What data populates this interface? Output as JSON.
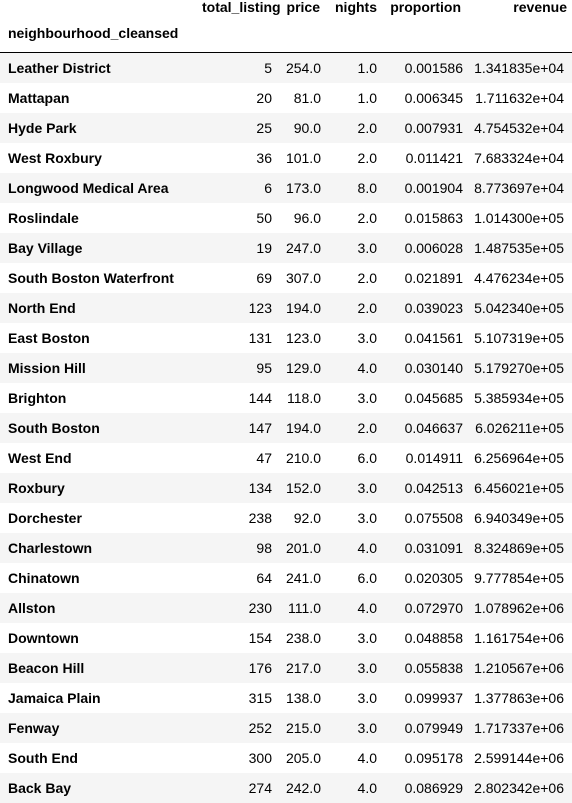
{
  "table": {
    "index_name": "neighbourhood_cleansed",
    "columns": [
      "total_listing",
      "price",
      "nights",
      "proportion",
      "revenue"
    ],
    "rows": [
      {
        "name": "Leather District",
        "total_listing": "5",
        "price": "254.0",
        "nights": "1.0",
        "proportion": "0.001586",
        "revenue": "1.341835e+04"
      },
      {
        "name": "Mattapan",
        "total_listing": "20",
        "price": "81.0",
        "nights": "1.0",
        "proportion": "0.006345",
        "revenue": "1.711632e+04"
      },
      {
        "name": "Hyde Park",
        "total_listing": "25",
        "price": "90.0",
        "nights": "2.0",
        "proportion": "0.007931",
        "revenue": "4.754532e+04"
      },
      {
        "name": "West Roxbury",
        "total_listing": "36",
        "price": "101.0",
        "nights": "2.0",
        "proportion": "0.011421",
        "revenue": "7.683324e+04"
      },
      {
        "name": "Longwood Medical Area",
        "total_listing": "6",
        "price": "173.0",
        "nights": "8.0",
        "proportion": "0.001904",
        "revenue": "8.773697e+04"
      },
      {
        "name": "Roslindale",
        "total_listing": "50",
        "price": "96.0",
        "nights": "2.0",
        "proportion": "0.015863",
        "revenue": "1.014300e+05"
      },
      {
        "name": "Bay Village",
        "total_listing": "19",
        "price": "247.0",
        "nights": "3.0",
        "proportion": "0.006028",
        "revenue": "1.487535e+05"
      },
      {
        "name": "South Boston Waterfront",
        "total_listing": "69",
        "price": "307.0",
        "nights": "2.0",
        "proportion": "0.021891",
        "revenue": "4.476234e+05"
      },
      {
        "name": "North End",
        "total_listing": "123",
        "price": "194.0",
        "nights": "2.0",
        "proportion": "0.039023",
        "revenue": "5.042340e+05"
      },
      {
        "name": "East Boston",
        "total_listing": "131",
        "price": "123.0",
        "nights": "3.0",
        "proportion": "0.041561",
        "revenue": "5.107319e+05"
      },
      {
        "name": "Mission Hill",
        "total_listing": "95",
        "price": "129.0",
        "nights": "4.0",
        "proportion": "0.030140",
        "revenue": "5.179270e+05"
      },
      {
        "name": "Brighton",
        "total_listing": "144",
        "price": "118.0",
        "nights": "3.0",
        "proportion": "0.045685",
        "revenue": "5.385934e+05"
      },
      {
        "name": "South Boston",
        "total_listing": "147",
        "price": "194.0",
        "nights": "2.0",
        "proportion": "0.046637",
        "revenue": "6.026211e+05"
      },
      {
        "name": "West End",
        "total_listing": "47",
        "price": "210.0",
        "nights": "6.0",
        "proportion": "0.014911",
        "revenue": "6.256964e+05"
      },
      {
        "name": "Roxbury",
        "total_listing": "134",
        "price": "152.0",
        "nights": "3.0",
        "proportion": "0.042513",
        "revenue": "6.456021e+05"
      },
      {
        "name": "Dorchester",
        "total_listing": "238",
        "price": "92.0",
        "nights": "3.0",
        "proportion": "0.075508",
        "revenue": "6.940349e+05"
      },
      {
        "name": "Charlestown",
        "total_listing": "98",
        "price": "201.0",
        "nights": "4.0",
        "proportion": "0.031091",
        "revenue": "8.324869e+05"
      },
      {
        "name": "Chinatown",
        "total_listing": "64",
        "price": "241.0",
        "nights": "6.0",
        "proportion": "0.020305",
        "revenue": "9.777854e+05"
      },
      {
        "name": "Allston",
        "total_listing": "230",
        "price": "111.0",
        "nights": "4.0",
        "proportion": "0.072970",
        "revenue": "1.078962e+06"
      },
      {
        "name": "Downtown",
        "total_listing": "154",
        "price": "238.0",
        "nights": "3.0",
        "proportion": "0.048858",
        "revenue": "1.161754e+06"
      },
      {
        "name": "Beacon Hill",
        "total_listing": "176",
        "price": "217.0",
        "nights": "3.0",
        "proportion": "0.055838",
        "revenue": "1.210567e+06"
      },
      {
        "name": "Jamaica Plain",
        "total_listing": "315",
        "price": "138.0",
        "nights": "3.0",
        "proportion": "0.099937",
        "revenue": "1.377863e+06"
      },
      {
        "name": "Fenway",
        "total_listing": "252",
        "price": "215.0",
        "nights": "3.0",
        "proportion": "0.079949",
        "revenue": "1.717337e+06"
      },
      {
        "name": "South End",
        "total_listing": "300",
        "price": "205.0",
        "nights": "4.0",
        "proportion": "0.095178",
        "revenue": "2.599144e+06"
      },
      {
        "name": "Back Bay",
        "total_listing": "274",
        "price": "242.0",
        "nights": "4.0",
        "proportion": "0.086929",
        "revenue": "2.802342e+06"
      }
    ]
  }
}
